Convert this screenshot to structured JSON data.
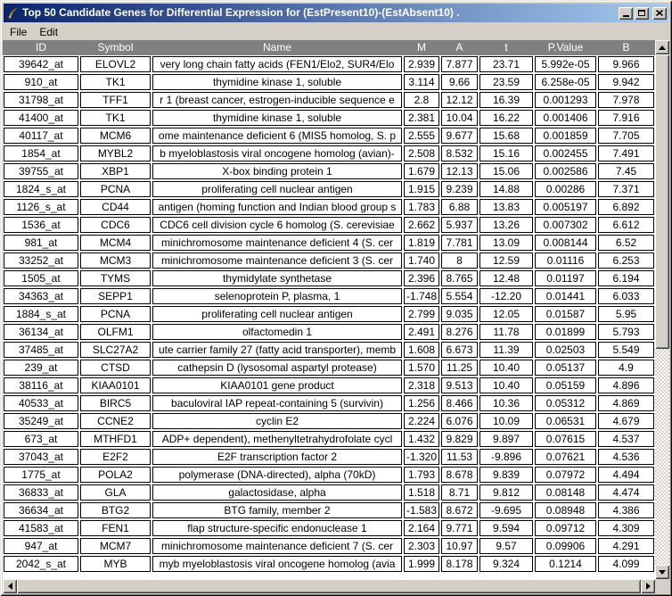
{
  "window": {
    "title": "Top 50 Candidate Genes for Differential Expression for (EstPresent10)-(EstAbsent10) .",
    "icon": "feather-icon",
    "controls": {
      "minimize": "minimize",
      "maximize": "maximize",
      "close": "close"
    }
  },
  "menu": {
    "items": [
      {
        "label": "File"
      },
      {
        "label": "Edit"
      }
    ]
  },
  "colors": {
    "title_gradient_start": "#0a246a",
    "title_gradient_end": "#a6caf0",
    "chrome": "#d4d0c8",
    "header_bg": "#808080",
    "header_text": "#ffffff",
    "cell_bg": "#ffffff",
    "cell_border": "#000000"
  },
  "table": {
    "columns": [
      "ID",
      "Symbol",
      "Name",
      "M",
      "A",
      "t",
      "P.Value",
      "B"
    ],
    "rows": [
      [
        "39642_at",
        "ELOVL2",
        "very long chain fatty acids (FEN1/Elo2, SUR4/Elo",
        "2.939",
        "7.877",
        "23.71",
        "5.992e-05",
        "9.966"
      ],
      [
        "910_at",
        "TK1",
        "thymidine kinase 1, soluble",
        "3.114",
        "9.66",
        "23.59",
        "6.258e-05",
        "9.942"
      ],
      [
        "31798_at",
        "TFF1",
        "r 1 (breast cancer, estrogen-inducible sequence e",
        "2.8",
        "12.12",
        "16.39",
        "0.001293",
        "7.978"
      ],
      [
        "41400_at",
        "TK1",
        "thymidine kinase 1, soluble",
        "2.381",
        "10.04",
        "16.22",
        "0.001406",
        "7.916"
      ],
      [
        "40117_at",
        "MCM6",
        "ome maintenance deficient 6 (MIS5 homolog, S. p",
        "2.555",
        "9.677",
        "15.68",
        "0.001859",
        "7.705"
      ],
      [
        "1854_at",
        "MYBL2",
        "b myeloblastosis viral oncogene homolog (avian)-",
        "2.508",
        "8.532",
        "15.16",
        "0.002455",
        "7.491"
      ],
      [
        "39755_at",
        "XBP1",
        "X-box binding protein 1",
        "1.679",
        "12.13",
        "15.06",
        "0.002586",
        "7.45"
      ],
      [
        "1824_s_at",
        "PCNA",
        "proliferating cell nuclear antigen",
        "1.915",
        "9.239",
        "14.88",
        "0.00286",
        "7.371"
      ],
      [
        "1126_s_at",
        "CD44",
        "antigen (homing function and Indian blood group s",
        "1.783",
        "6.88",
        "13.83",
        "0.005197",
        "6.892"
      ],
      [
        "1536_at",
        "CDC6",
        "CDC6 cell division cycle 6 homolog (S. cerevisiae",
        "2.662",
        "5.937",
        "13.26",
        "0.007302",
        "6.612"
      ],
      [
        "981_at",
        "MCM4",
        "minichromosome maintenance deficient 4 (S. cer",
        "1.819",
        "7.781",
        "13.09",
        "0.008144",
        "6.52"
      ],
      [
        "33252_at",
        "MCM3",
        "minichromosome maintenance deficient 3 (S. cer",
        "1.740",
        "8",
        "12.59",
        "0.01116",
        "6.253"
      ],
      [
        "1505_at",
        "TYMS",
        "thymidylate synthetase",
        "2.396",
        "8.765",
        "12.48",
        "0.01197",
        "6.194"
      ],
      [
        "34363_at",
        "SEPP1",
        "selenoprotein P, plasma, 1",
        "-1.748",
        "5.554",
        "-12.20",
        "0.01441",
        "6.033"
      ],
      [
        "1884_s_at",
        "PCNA",
        "proliferating cell nuclear antigen",
        "2.799",
        "9.035",
        "12.05",
        "0.01587",
        "5.95"
      ],
      [
        "36134_at",
        "OLFM1",
        "olfactomedin 1",
        "2.491",
        "8.276",
        "11.78",
        "0.01899",
        "5.793"
      ],
      [
        "37485_at",
        "SLC27A2",
        "ute carrier family 27 (fatty acid transporter), memb",
        "1.608",
        "6.673",
        "11.39",
        "0.02503",
        "5.549"
      ],
      [
        "239_at",
        "CTSD",
        "cathepsin D (lysosomal aspartyl protease)",
        "1.570",
        "11.25",
        "10.40",
        "0.05137",
        "4.9"
      ],
      [
        "38116_at",
        "KIAA0101",
        "KIAA0101 gene product",
        "2.318",
        "9.513",
        "10.40",
        "0.05159",
        "4.896"
      ],
      [
        "40533_at",
        "BIRC5",
        "baculoviral IAP repeat-containing 5 (survivin)",
        "1.256",
        "8.466",
        "10.36",
        "0.05312",
        "4.869"
      ],
      [
        "35249_at",
        "CCNE2",
        "cyclin E2",
        "2.224",
        "6.076",
        "10.09",
        "0.06531",
        "4.679"
      ],
      [
        "673_at",
        "MTHFD1",
        "ADP+ dependent), methenyltetrahydrofolate cycl",
        "1.432",
        "9.829",
        "9.897",
        "0.07615",
        "4.537"
      ],
      [
        "37043_at",
        "E2F2",
        "E2F transcription factor 2",
        "-1.320",
        "11.53",
        "-9.896",
        "0.07621",
        "4.536"
      ],
      [
        "1775_at",
        "POLA2",
        "polymerase (DNA-directed), alpha (70kD)",
        "1.793",
        "8.678",
        "9.839",
        "0.07972",
        "4.494"
      ],
      [
        "36833_at",
        "GLA",
        "galactosidase, alpha",
        "1.518",
        "8.71",
        "9.812",
        "0.08148",
        "4.474"
      ],
      [
        "36634_at",
        "BTG2",
        "BTG family, member 2",
        "-1.583",
        "8.672",
        "-9.695",
        "0.08948",
        "4.386"
      ],
      [
        "41583_at",
        "FEN1",
        "flap structure-specific endonuclease 1",
        "2.164",
        "9.771",
        "9.594",
        "0.09712",
        "4.309"
      ],
      [
        "947_at",
        "MCM7",
        "minichromosome maintenance deficient 7 (S. cer",
        "2.303",
        "10.97",
        "9.57",
        "0.09906",
        "4.291"
      ],
      [
        "2042_s_at",
        "MYB",
        "myb myeloblastosis viral oncogene homolog (avia",
        "1.999",
        "8.178",
        "9.324",
        "0.1214",
        "4.099"
      ]
    ]
  }
}
